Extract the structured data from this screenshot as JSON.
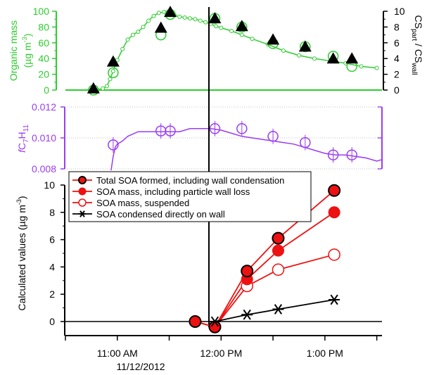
{
  "colors": {
    "green": "#2ecc2e",
    "purple": "#9a3cf0",
    "red": "#ee1111",
    "black": "#000000",
    "dark_red_fill": "#cc0000"
  },
  "chart_data": [
    {
      "type": "scatter",
      "panel": "top",
      "ylabel_line1": "Organic mass",
      "ylabel_line2": "(µg m",
      "ylabel_sup": "-3",
      "ylabel_close": ")",
      "ylim": [
        0,
        100
      ],
      "yticks": [
        "0",
        "20",
        "40",
        "60",
        "80",
        "100"
      ],
      "y2label_a": "C",
      "y2label_b": "S",
      "y2label_sub1": "part",
      "y2label_mid": " / C",
      "y2label_c": "S",
      "y2label_sub2": "wall",
      "y2lim": [
        0,
        10
      ],
      "y2ticks": [
        "0",
        "2",
        "4",
        "6",
        "8",
        "10"
      ],
      "series": [
        {
          "marker": "small-open-circle-line",
          "x": [
            10.77,
            10.81,
            10.86,
            10.9,
            10.93,
            10.96,
            11.0,
            11.05,
            11.1,
            11.15,
            11.2,
            11.25,
            11.3,
            11.35,
            11.4,
            11.45,
            11.5,
            11.55,
            11.6,
            11.65,
            11.7,
            11.75,
            11.8,
            11.85,
            11.9,
            11.95,
            12.0,
            12.1,
            12.2,
            12.3,
            12.45,
            12.6,
            12.75,
            12.9,
            13.05,
            13.2,
            13.35,
            13.5
          ],
          "y": [
            0,
            0,
            2,
            5,
            14,
            24,
            38,
            52,
            64,
            70,
            74,
            80,
            88,
            94,
            98,
            99,
            97,
            95,
            93,
            92,
            91,
            90,
            88,
            86,
            84,
            81,
            79,
            75,
            70,
            65,
            58,
            50,
            44,
            40,
            37,
            34,
            30,
            28
          ]
        },
        {
          "marker": "large-open-circle",
          "x": [
            10.77,
            10.96,
            11.42,
            11.51,
            11.94,
            12.2,
            12.5,
            12.81,
            13.08,
            13.26
          ],
          "y": [
            0,
            22,
            70,
            96,
            91,
            80,
            59,
            55,
            43,
            30
          ]
        },
        {
          "marker": "triangle",
          "axis": "right",
          "x": [
            10.77,
            10.96,
            11.42,
            11.51,
            11.94,
            12.2,
            12.5,
            12.81,
            13.08,
            13.26
          ],
          "y": [
            0.2,
            3.6,
            7.9,
            9.9,
            9.1,
            8.1,
            6.4,
            5.5,
            4.0,
            4.0
          ]
        }
      ]
    },
    {
      "type": "line",
      "panel": "middle",
      "ylabel_f": "f",
      "ylabel_c": "C",
      "ylabel_sub1": "7",
      "ylabel_h": "H",
      "ylabel_sub2": "11",
      "ylim": [
        0.008,
        0.012
      ],
      "yticks": [
        "0.008",
        "0.010",
        "0.012"
      ],
      "series": [
        {
          "marker": "line",
          "x": [
            10.94,
            10.96,
            10.98,
            11.0,
            11.05,
            11.1,
            11.2,
            11.3,
            11.4,
            11.5,
            11.6,
            11.7,
            11.8,
            11.9,
            12.0,
            12.1,
            12.2,
            12.3,
            12.4,
            12.5,
            12.6,
            12.7,
            12.8,
            12.9,
            13.0,
            13.1,
            13.2,
            13.3,
            13.4,
            13.5,
            13.55
          ],
          "y": [
            0.0079,
            0.0088,
            0.0094,
            0.0096,
            0.0098,
            0.0101,
            0.0104,
            0.0104,
            0.0104,
            0.0104,
            0.0104,
            0.0106,
            0.0106,
            0.0106,
            0.0105,
            0.0103,
            0.0101,
            0.01,
            0.0099,
            0.0098,
            0.0097,
            0.0096,
            0.0094,
            0.0092,
            0.009,
            0.0089,
            0.0089,
            0.0088,
            0.0087,
            0.0085,
            0.0086
          ]
        },
        {
          "marker": "large-open-circle",
          "x": [
            10.96,
            11.42,
            11.51,
            11.94,
            12.2,
            12.5,
            12.81,
            13.08,
            13.26
          ],
          "y": [
            0.00955,
            0.01045,
            0.01045,
            0.0106,
            0.0106,
            0.0101,
            0.0097,
            0.0089,
            0.0089
          ]
        }
      ]
    },
    {
      "type": "line",
      "panel": "bottom",
      "ylabel": "Calculated values (µg m",
      "ylabel_sup": "-3",
      "ylabel_close": ")",
      "ylim": [
        0,
        10
      ],
      "yticks": [
        "0",
        "2",
        "4",
        "6",
        "8",
        "10"
      ],
      "xticks": [
        {
          "x": 11.0,
          "label": "11:00 AM"
        },
        {
          "x": 12.0,
          "label": "12:00 PM"
        },
        {
          "x": 13.0,
          "label": "1:00 PM"
        }
      ],
      "xdate": "11/12/2012",
      "legend": "top-left",
      "series": [
        {
          "name": "Total SOA formed, including wall condensation",
          "marker": "filled-circle-dark",
          "x": [
            11.75,
            11.94,
            12.25,
            12.55,
            13.09
          ],
          "y": [
            0.0,
            -0.4,
            3.7,
            6.1,
            9.6
          ]
        },
        {
          "name": "SOA mass, including particle wall loss",
          "marker": "filled-circle",
          "x": [
            11.75,
            11.94,
            12.25,
            12.55,
            13.09
          ],
          "y": [
            0.0,
            -0.4,
            3.1,
            5.2,
            8.0
          ]
        },
        {
          "name": "SOA mass, suspended",
          "marker": "open-circle",
          "x": [
            11.75,
            11.94,
            12.25,
            12.55,
            13.09
          ],
          "y": [
            0.0,
            -0.4,
            2.6,
            3.8,
            4.9
          ]
        },
        {
          "name": "SOA condensed directly on wall",
          "marker": "asterisk",
          "x": [
            11.94,
            12.25,
            12.55,
            13.09
          ],
          "y": [
            0.0,
            0.5,
            0.9,
            1.6
          ]
        }
      ]
    }
  ]
}
